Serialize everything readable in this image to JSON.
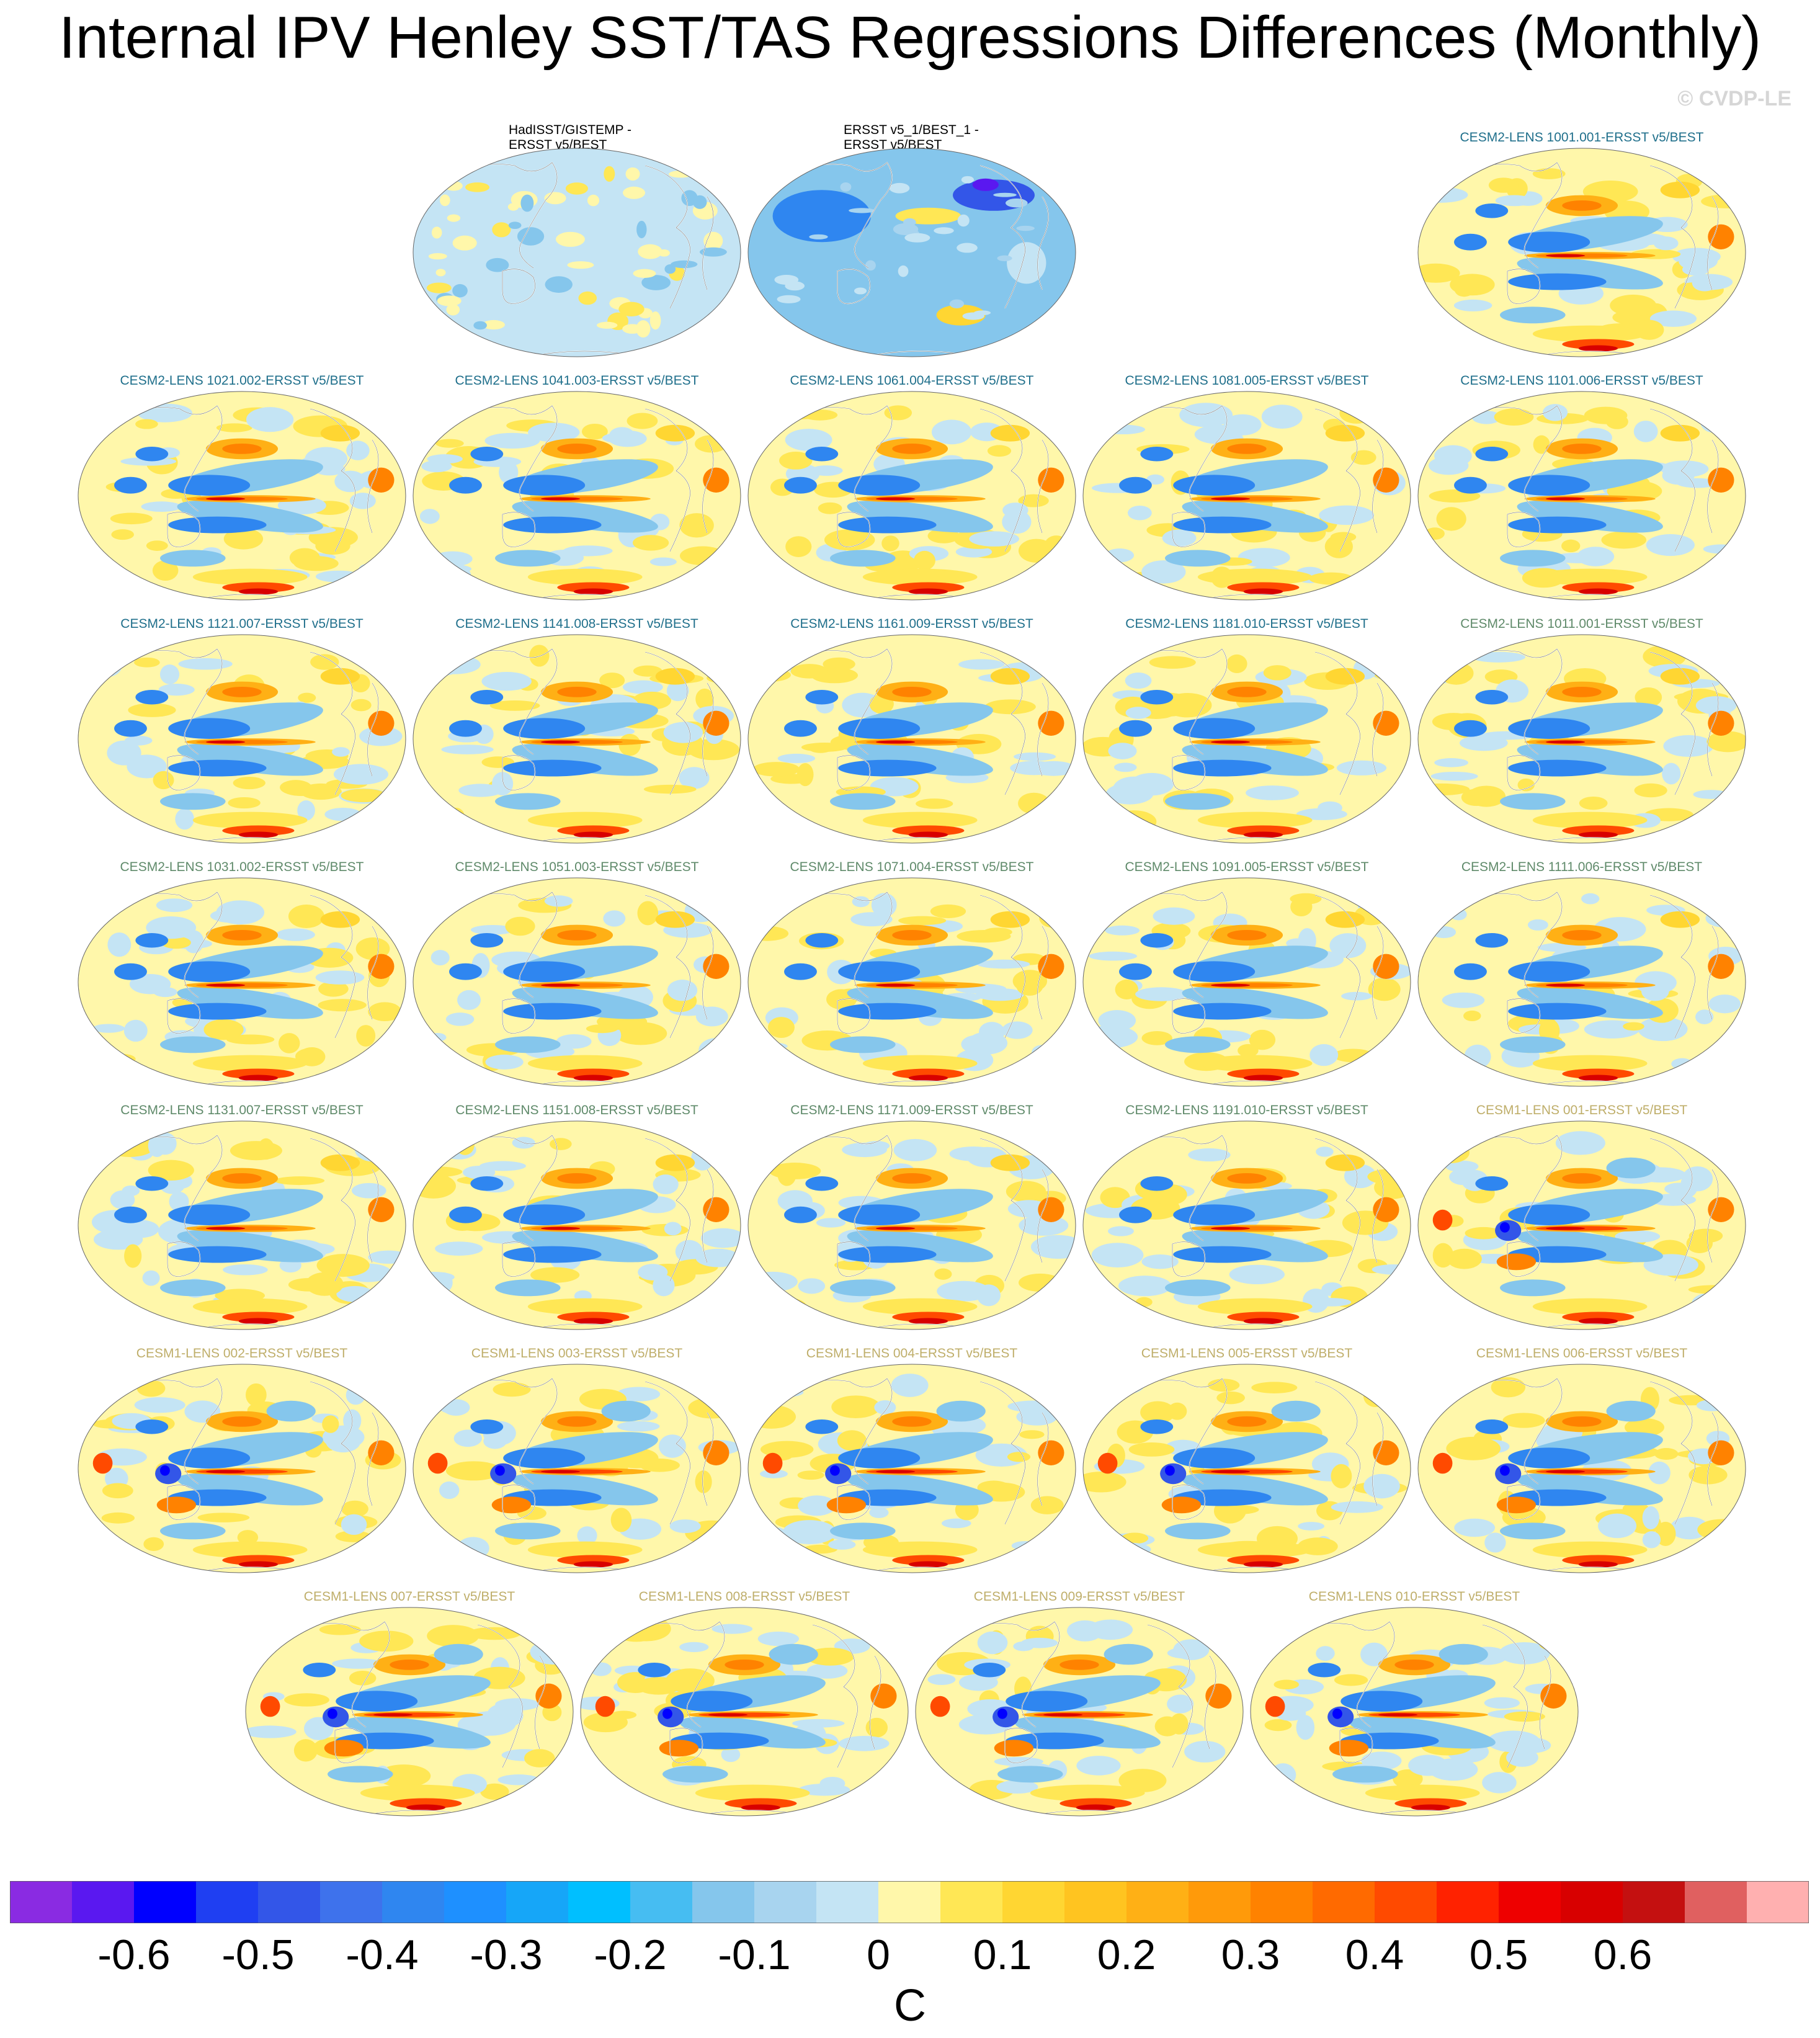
{
  "title": "Internal IPV Henley SST/TAS Regressions Differences (Monthly)",
  "watermark": "© CVDP-LE",
  "colorbar": {
    "units": "C",
    "tick_labels": [
      "-0.6",
      "-0.5",
      "-0.4",
      "-0.3",
      "-0.2",
      "-0.1",
      "0",
      "0.1",
      "0.2",
      "0.3",
      "0.4",
      "0.5",
      "0.6"
    ],
    "colors": [
      "#8a2be2",
      "#5a18f0",
      "#0000ff",
      "#1f3ff2",
      "#3356e8",
      "#3e72ec",
      "#2f86f0",
      "#1e90ff",
      "#16a6f8",
      "#00bfff",
      "#46bdf2",
      "#85c6ec",
      "#a8d4ef",
      "#c4e4f4",
      "#fff7aa",
      "#ffe755",
      "#ffd632",
      "#ffc420",
      "#ffb015",
      "#ff9a0a",
      "#ff8200",
      "#ff6a00",
      "#ff4a00",
      "#ff2200",
      "#ee0000",
      "#d80000",
      "#c41010",
      "#e06060",
      "#ffb0b0"
    ]
  },
  "color_groups": {
    "observations": "#000000",
    "cesm2_lens_a": "#1f6f8b",
    "cesm2_lens_b": "#5f8a6a",
    "cesm1_lens": "#bfae6a"
  },
  "panels": [
    {
      "title_lines": [
        "HadISST/GISTEMP -",
        "ERSST v5/BEST"
      ],
      "group": "observations",
      "style": "obs1"
    },
    {
      "title_lines": [
        "ERSST v5_1/BEST_1 -",
        "ERSST v5/BEST"
      ],
      "group": "observations",
      "style": "obs2"
    },
    {
      "title": "CESM2-LENS 1001.001-ERSST v5/BEST",
      "group": "cesm2_lens_a",
      "style": "cesm2"
    },
    {
      "title": "CESM2-LENS 1021.002-ERSST v5/BEST",
      "group": "cesm2_lens_a",
      "style": "cesm2"
    },
    {
      "title": "CESM2-LENS 1041.003-ERSST v5/BEST",
      "group": "cesm2_lens_a",
      "style": "cesm2"
    },
    {
      "title": "CESM2-LENS 1061.004-ERSST v5/BEST",
      "group": "cesm2_lens_a",
      "style": "cesm2"
    },
    {
      "title": "CESM2-LENS 1081.005-ERSST v5/BEST",
      "group": "cesm2_lens_a",
      "style": "cesm2"
    },
    {
      "title": "CESM2-LENS 1101.006-ERSST v5/BEST",
      "group": "cesm2_lens_a",
      "style": "cesm2"
    },
    {
      "title": "CESM2-LENS 1121.007-ERSST v5/BEST",
      "group": "cesm2_lens_a",
      "style": "cesm2"
    },
    {
      "title": "CESM2-LENS 1141.008-ERSST v5/BEST",
      "group": "cesm2_lens_a",
      "style": "cesm2"
    },
    {
      "title": "CESM2-LENS 1161.009-ERSST v5/BEST",
      "group": "cesm2_lens_a",
      "style": "cesm2"
    },
    {
      "title": "CESM2-LENS 1181.010-ERSST v5/BEST",
      "group": "cesm2_lens_a",
      "style": "cesm2"
    },
    {
      "title": "CESM2-LENS 1011.001-ERSST v5/BEST",
      "group": "cesm2_lens_b",
      "style": "cesm2"
    },
    {
      "title": "CESM2-LENS 1031.002-ERSST v5/BEST",
      "group": "cesm2_lens_b",
      "style": "cesm2"
    },
    {
      "title": "CESM2-LENS 1051.003-ERSST v5/BEST",
      "group": "cesm2_lens_b",
      "style": "cesm2"
    },
    {
      "title": "CESM2-LENS 1071.004-ERSST v5/BEST",
      "group": "cesm2_lens_b",
      "style": "cesm2"
    },
    {
      "title": "CESM2-LENS 1091.005-ERSST v5/BEST",
      "group": "cesm2_lens_b",
      "style": "cesm2"
    },
    {
      "title": "CESM2-LENS 1111.006-ERSST v5/BEST",
      "group": "cesm2_lens_b",
      "style": "cesm2"
    },
    {
      "title": "CESM2-LENS 1131.007-ERSST v5/BEST",
      "group": "cesm2_lens_b",
      "style": "cesm2"
    },
    {
      "title": "CESM2-LENS 1151.008-ERSST v5/BEST",
      "group": "cesm2_lens_b",
      "style": "cesm2"
    },
    {
      "title": "CESM2-LENS 1171.009-ERSST v5/BEST",
      "group": "cesm2_lens_b",
      "style": "cesm2"
    },
    {
      "title": "CESM2-LENS 1191.010-ERSST v5/BEST",
      "group": "cesm2_lens_b",
      "style": "cesm2"
    },
    {
      "title": "CESM1-LENS 001-ERSST v5/BEST",
      "group": "cesm1_lens",
      "style": "cesm1"
    },
    {
      "title": "CESM1-LENS 002-ERSST v5/BEST",
      "group": "cesm1_lens",
      "style": "cesm1"
    },
    {
      "title": "CESM1-LENS 003-ERSST v5/BEST",
      "group": "cesm1_lens",
      "style": "cesm1"
    },
    {
      "title": "CESM1-LENS 004-ERSST v5/BEST",
      "group": "cesm1_lens",
      "style": "cesm1"
    },
    {
      "title": "CESM1-LENS 005-ERSST v5/BEST",
      "group": "cesm1_lens",
      "style": "cesm1"
    },
    {
      "title": "CESM1-LENS 006-ERSST v5/BEST",
      "group": "cesm1_lens",
      "style": "cesm1"
    },
    {
      "title": "CESM1-LENS 007-ERSST v5/BEST",
      "group": "cesm1_lens",
      "style": "cesm1"
    },
    {
      "title": "CESM1-LENS 008-ERSST v5/BEST",
      "group": "cesm1_lens",
      "style": "cesm1"
    },
    {
      "title": "CESM1-LENS 009-ERSST v5/BEST",
      "group": "cesm1_lens",
      "style": "cesm1"
    },
    {
      "title": "CESM1-LENS 010-ERSST v5/BEST",
      "group": "cesm1_lens",
      "style": "cesm1"
    }
  ]
}
